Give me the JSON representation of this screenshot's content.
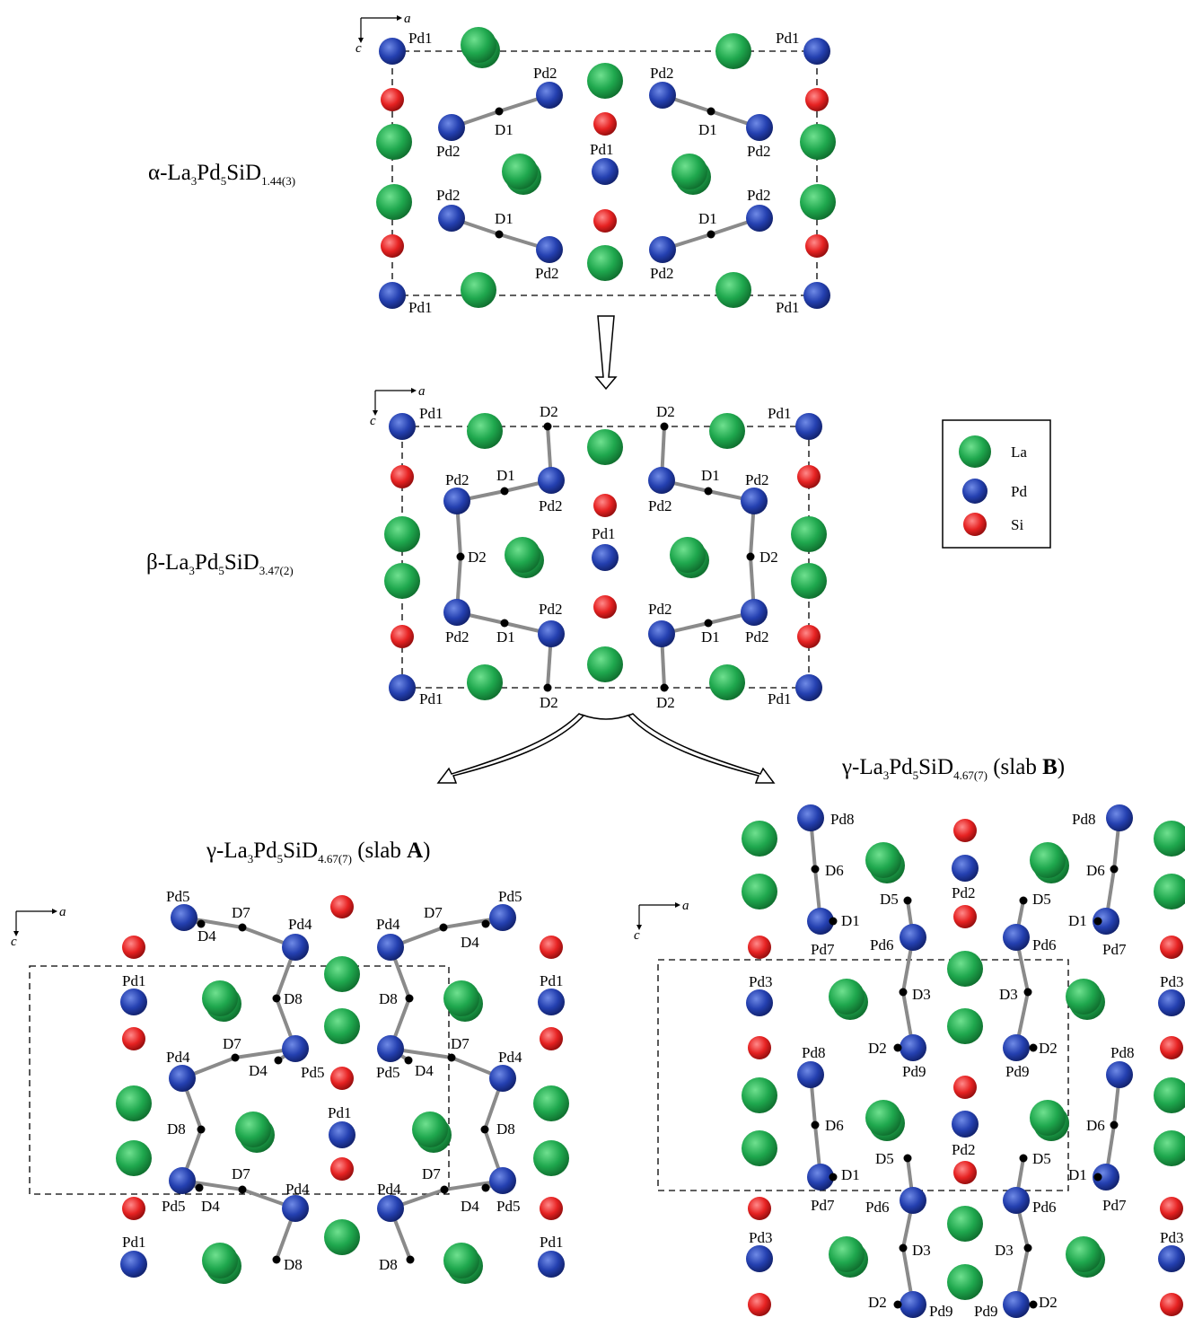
{
  "colors": {
    "la": "#1e9e4a",
    "pd": "#1f3aa0",
    "si": "#e02020",
    "bond": "#808080"
  },
  "axes": {
    "a": "a",
    "c": "c"
  },
  "legend": [
    {
      "key": "la",
      "label": "La"
    },
    {
      "key": "pd",
      "label": "Pd"
    },
    {
      "key": "si",
      "label": "Si"
    }
  ],
  "phases": [
    {
      "id": "alpha",
      "prefix": "α-La",
      "s1": "3",
      "p2": "Pd",
      "s2": "5",
      "p3": "SiD",
      "s3": "1.44(3)",
      "suffix": ""
    },
    {
      "id": "beta",
      "prefix": "β-La",
      "s1": "3",
      "p2": "Pd",
      "s2": "5",
      "p3": "SiD",
      "s3": "3.47(2)",
      "suffix": ""
    },
    {
      "id": "gammaA",
      "prefix": "γ-La",
      "s1": "3",
      "p2": "Pd",
      "s2": "5",
      "p3": "SiD",
      "s3": "4.67(7)",
      "suffix": " (slab ",
      "bold": "A",
      "close": ")"
    },
    {
      "id": "gammaB",
      "prefix": "γ-La",
      "s1": "3",
      "p2": "Pd",
      "s2": "5",
      "p3": "SiD",
      "s3": "4.67(7)",
      "suffix": " (slab ",
      "bold": "B",
      "close": ")"
    }
  ],
  "site_labels": {
    "Pd1": "Pd1",
    "Pd2": "Pd2",
    "Pd3": "Pd3",
    "Pd4": "Pd4",
    "Pd5": "Pd5",
    "Pd6": "Pd6",
    "Pd7": "Pd7",
    "Pd8": "Pd8",
    "Pd9": "Pd9",
    "D1": "D1",
    "D2": "D2",
    "D3": "D3",
    "D4": "D4",
    "D5": "D5",
    "D6": "D6",
    "D7": "D7",
    "D8": "D8"
  }
}
